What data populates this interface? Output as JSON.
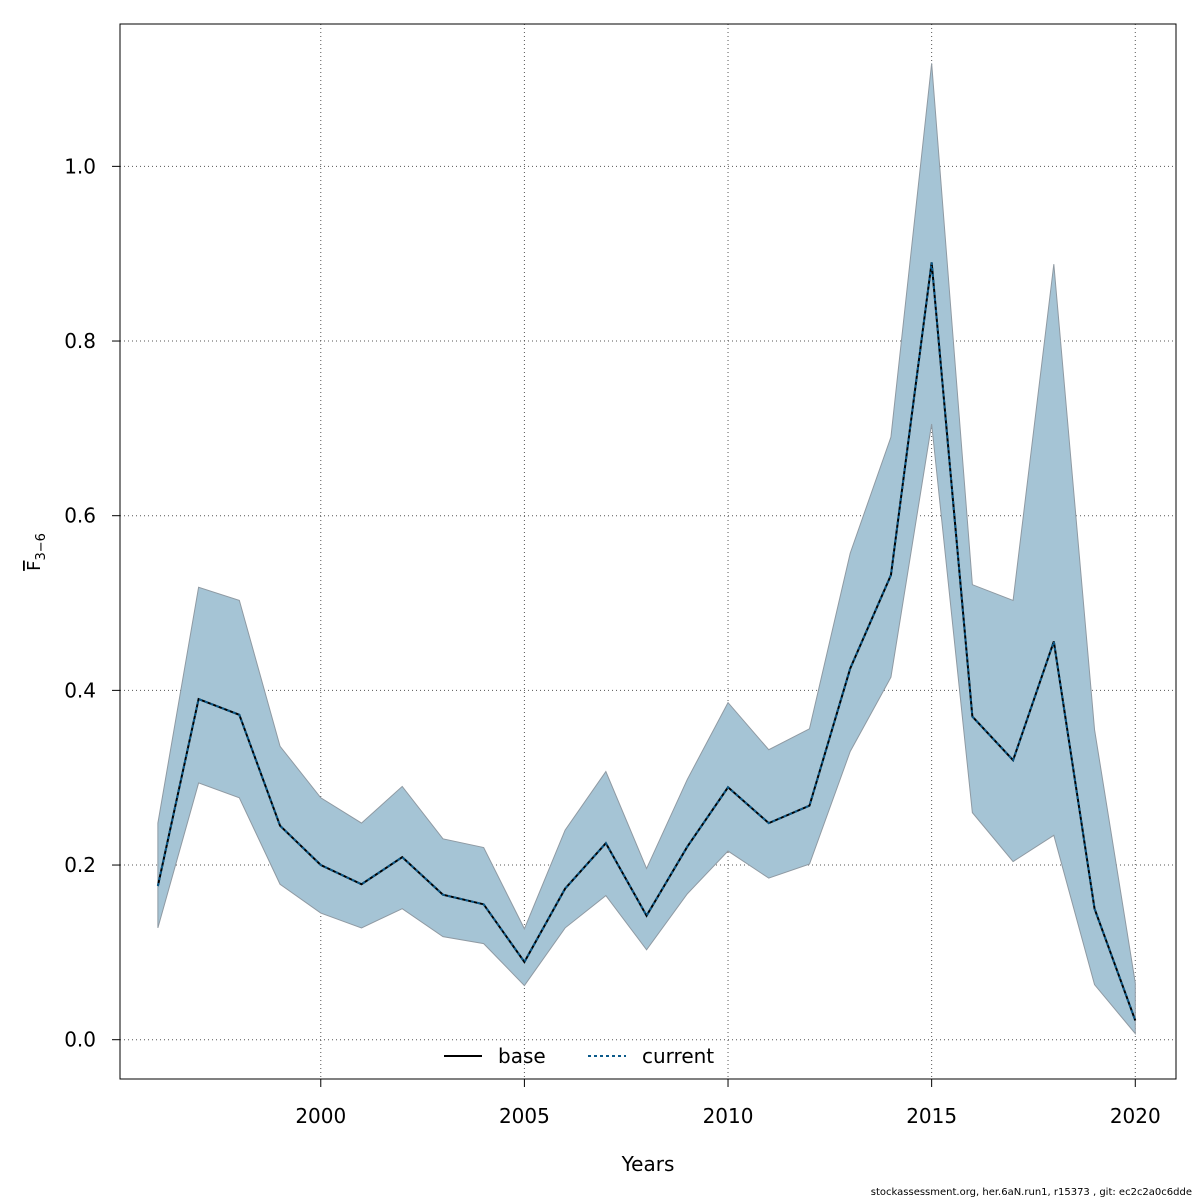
{
  "chart_data": {
    "type": "line",
    "xlabel": "Years",
    "ylabel_main": "F",
    "ylabel_sub": "3−6",
    "x": [
      1996,
      1997,
      1998,
      1999,
      2000,
      2001,
      2002,
      2003,
      2004,
      2005,
      2006,
      2007,
      2008,
      2009,
      2010,
      2011,
      2012,
      2013,
      2014,
      2015,
      2016,
      2017,
      2018,
      2019,
      2020
    ],
    "xlim": [
      1995.07,
      2021.0
    ],
    "ylim": [
      -0.045,
      1.163
    ],
    "xticks": [
      2000,
      2005,
      2010,
      2015,
      2020
    ],
    "yticks": [
      0.0,
      0.2,
      0.4,
      0.6,
      0.8,
      1.0
    ],
    "ytick_labels": [
      "0.0",
      "0.2",
      "0.4",
      "0.6",
      "0.8",
      "1.0"
    ],
    "grid": true,
    "band": {
      "upper": [
        0.248,
        0.518,
        0.503,
        0.336,
        0.277,
        0.248,
        0.29,
        0.23,
        0.22,
        0.127,
        0.24,
        0.307,
        0.196,
        0.298,
        0.386,
        0.332,
        0.356,
        0.557,
        0.69,
        1.118,
        0.521,
        0.503,
        0.888,
        0.355,
        0.065
      ],
      "lower": [
        0.128,
        0.294,
        0.277,
        0.178,
        0.145,
        0.128,
        0.15,
        0.118,
        0.11,
        0.062,
        0.128,
        0.165,
        0.103,
        0.167,
        0.216,
        0.185,
        0.201,
        0.33,
        0.415,
        0.705,
        0.26,
        0.204,
        0.234,
        0.063,
        0.007
      ],
      "color": "#a5c4d5",
      "edge_color": "#8f9aa3"
    },
    "series": [
      {
        "name": "base",
        "values": [
          0.176,
          0.39,
          0.372,
          0.245,
          0.2,
          0.178,
          0.209,
          0.166,
          0.155,
          0.089,
          0.173,
          0.225,
          0.142,
          0.221,
          0.289,
          0.248,
          0.268,
          0.425,
          0.532,
          0.89,
          0.37,
          0.32,
          0.456,
          0.15,
          0.022
        ],
        "color": "#000000",
        "dash": "none"
      },
      {
        "name": "current",
        "values": [
          0.176,
          0.39,
          0.372,
          0.245,
          0.2,
          0.178,
          0.209,
          0.166,
          0.155,
          0.089,
          0.173,
          0.225,
          0.142,
          0.221,
          0.289,
          0.248,
          0.268,
          0.425,
          0.532,
          0.89,
          0.37,
          0.32,
          0.456,
          0.15,
          0.022
        ],
        "color": "#0b5a8a",
        "dash": "3,3"
      }
    ],
    "legend": {
      "placement": "bottom-center",
      "entries": [
        "base",
        "current"
      ]
    }
  },
  "footer": "stockassessment.org, her.6aN.run1, r15373 , git: ec2c2a0c6dde"
}
